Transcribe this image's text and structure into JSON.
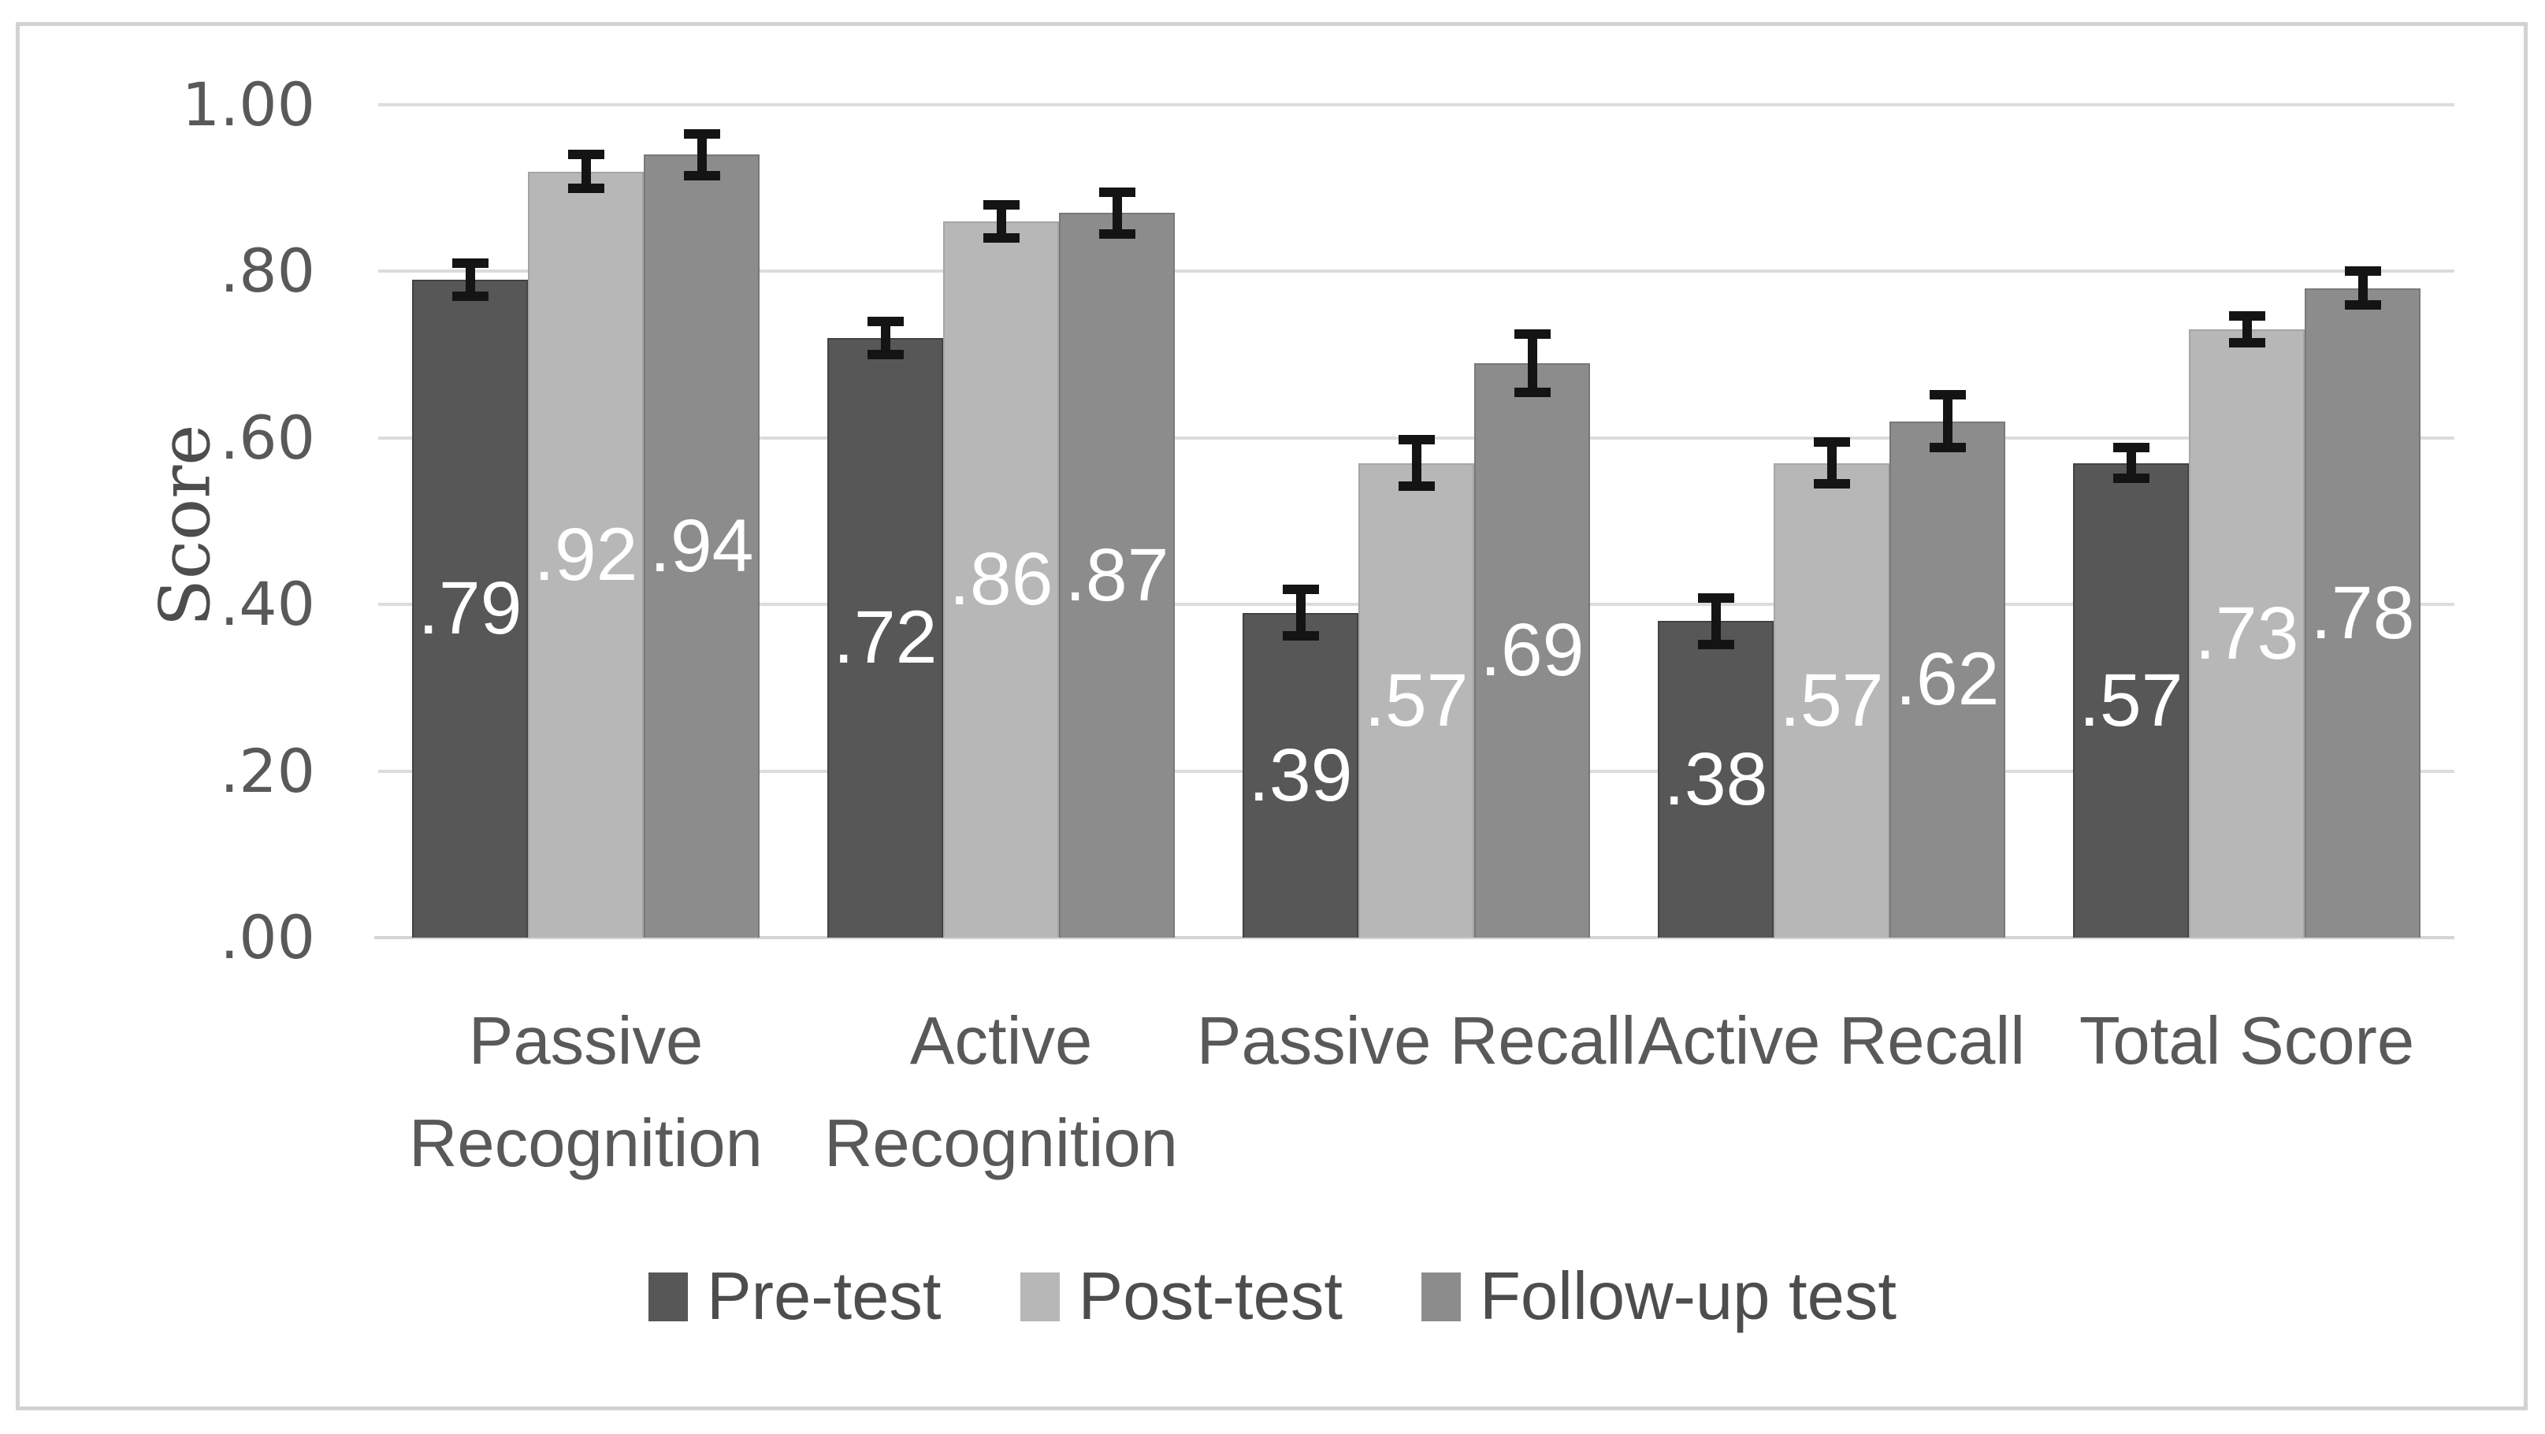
{
  "chart_data": {
    "type": "bar",
    "title": "",
    "xlabel": "",
    "ylabel": "Score",
    "ylim": [
      0,
      1.0
    ],
    "grid": "horizontal",
    "legend_position": "bottom",
    "ytick_labels": [
      "1.00",
      ".80",
      ".60",
      ".40",
      ".20",
      ".00"
    ],
    "ytick_values": [
      1.0,
      0.8,
      0.6,
      0.4,
      0.2,
      0.0
    ],
    "categories": [
      "Passive Recognition",
      "Active Recognition",
      "Passive Recall",
      "Active Recall",
      "Total Score"
    ],
    "category_label_lines": [
      [
        "Passive",
        "Recognition"
      ],
      [
        "Active",
        "Recognition"
      ],
      [
        "Passive Recall"
      ],
      [
        "Active Recall"
      ],
      [
        "Total Score"
      ]
    ],
    "series": [
      {
        "name": "Pre-test",
        "color": "#575757",
        "edge_color": "#434343",
        "values": [
          0.79,
          0.72,
          0.39,
          0.38,
          0.57
        ],
        "value_labels": [
          ".79",
          ".72",
          ".39",
          ".38",
          ".57"
        ],
        "errors": [
          0.02,
          0.02,
          0.028,
          0.028,
          0.018
        ]
      },
      {
        "name": "Post-test",
        "color": "#b7b7b7",
        "edge_color": "#a5a5a5",
        "values": [
          0.92,
          0.86,
          0.57,
          0.57,
          0.73
        ],
        "value_labels": [
          ".92",
          ".86",
          ".57",
          ".57",
          ".73"
        ],
        "errors": [
          0.02,
          0.02,
          0.028,
          0.025,
          0.016
        ]
      },
      {
        "name": "Follow-up test",
        "color": "#8c8c8c",
        "edge_color": "#787878",
        "values": [
          0.94,
          0.87,
          0.69,
          0.62,
          0.78
        ],
        "value_labels": [
          ".94",
          ".87",
          ".69",
          ".62",
          ".78"
        ],
        "errors": [
          0.025,
          0.025,
          0.035,
          0.032,
          0.02
        ]
      }
    ],
    "error_bar_color": "#141414",
    "value_label_color": "#ffffff",
    "axis_text_color": "#595959",
    "gridline_color": "#dcdcdc",
    "frame_border_color": "#d2d2d2"
  }
}
